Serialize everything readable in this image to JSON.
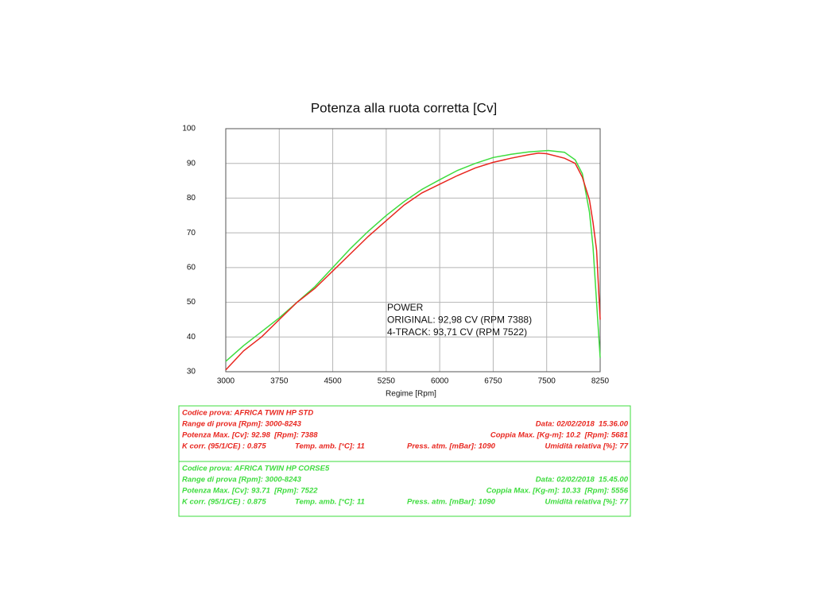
{
  "chart_data": {
    "type": "line",
    "title": "Potenza alla ruota corretta [Cv]",
    "x_label": "Regime [Rpm]",
    "annotations": [
      "POWER",
      "ORIGINAL: 92,98 CV (RPM 7388)",
      "4-TRACK: 93,71 CV (RPM 7522)"
    ],
    "xlim": [
      3000,
      8250
    ],
    "ylim": [
      30,
      100
    ],
    "xticks": [
      3000,
      3750,
      4500,
      5250,
      6000,
      6750,
      7500,
      8250
    ],
    "yticks": [
      30,
      40,
      50,
      60,
      70,
      80,
      90,
      100
    ],
    "grid": true,
    "series": [
      {
        "name": "ORIGINAL",
        "color": "#e8261f",
        "x": [
          3000,
          3250,
          3500,
          3750,
          4000,
          4250,
          4500,
          4750,
          5000,
          5250,
          5500,
          5750,
          6000,
          6250,
          6500,
          6750,
          7000,
          7250,
          7388,
          7500,
          7750,
          7900,
          8000,
          8100,
          8150,
          8200,
          8250
        ],
        "values": [
          30.5,
          36,
          40,
          45,
          50,
          54,
          59,
          64,
          69,
          73.5,
          78,
          81.5,
          84,
          86.5,
          88.7,
          90.3,
          91.5,
          92.5,
          92.98,
          92.8,
          91.5,
          90,
          86,
          79.5,
          73,
          65,
          45
        ]
      },
      {
        "name": "4-TRACK",
        "color": "#3ddc3d",
        "x": [
          3000,
          3250,
          3500,
          3750,
          4000,
          4250,
          4500,
          4750,
          5000,
          5250,
          5500,
          5750,
          6000,
          6250,
          6500,
          6750,
          7000,
          7250,
          7522,
          7750,
          7900,
          8000,
          8100,
          8150,
          8200,
          8250
        ],
        "values": [
          33,
          37.5,
          41.5,
          45.5,
          50,
          54.5,
          60,
          65.5,
          70.5,
          75,
          79,
          82.5,
          85.3,
          88,
          90,
          91.7,
          92.6,
          93.3,
          93.71,
          93.2,
          91,
          87,
          76,
          66,
          50,
          34
        ]
      }
    ]
  },
  "tests": [
    {
      "color": "#e8261f",
      "rows": [
        [
          "Codice prova: AFRICA TWIN HP STD"
        ],
        [
          "Range di prova [Rpm]: 3000-8243",
          "Data: 02/02/2018  15.36.00"
        ],
        [
          "Potenza Max. [Cv]: 92.98  [Rpm]: 7388",
          "Coppia Max. [Kg-m]: 10.2  [Rpm]: 5681"
        ],
        [
          "K corr. (95/1/CE) : 0.875",
          "Temp. amb. [°C]: 11",
          "Press. atm. [mBar]: 1090",
          "Umidità relativa [%]: 77"
        ]
      ]
    },
    {
      "color": "#3ddc3d",
      "rows": [
        [
          "Codice prova: AFRICA TWIN HP CORSE5"
        ],
        [
          "Range di prova [Rpm]: 3000-8243",
          "Data: 02/02/2018  15.45.00"
        ],
        [
          "Potenza Max. [Cv]: 93.71  [Rpm]: 7522",
          "Coppia Max. [Kg-m]: 10.33  [Rpm]: 5556"
        ],
        [
          "K corr. (95/1/CE) : 0.875",
          "Temp. amb. [°C]: 11",
          "Press. atm. [mBar]: 1090",
          "Umidità relativa [%]: 77"
        ]
      ]
    }
  ]
}
